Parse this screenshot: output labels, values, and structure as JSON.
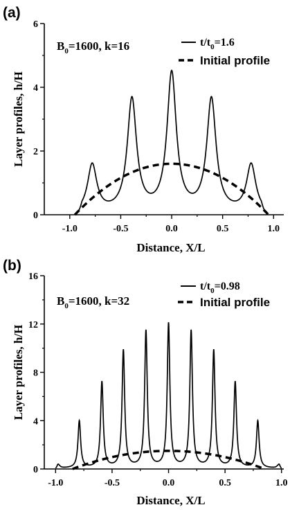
{
  "chart_data": [
    {
      "type": "line",
      "panel_label": "(a)",
      "annotation": {
        "main": "B",
        "sub": "0",
        "rest": "=1600, k=16"
      },
      "xlabel": "Distance, X/L",
      "ylabel": "Layer profiles, h/H",
      "xlim": [
        -1.25,
        1.1
      ],
      "ylim": [
        0,
        6
      ],
      "xticks": [
        -1.0,
        -0.5,
        0.0,
        0.5,
        1.0
      ],
      "xtick_labels": [
        "-1.0",
        "-0.5",
        "0.0",
        "0.5",
        "1.0"
      ],
      "yticks": [
        0,
        2,
        4,
        6
      ],
      "ytick_labels": [
        "0",
        "2",
        "4",
        "6"
      ],
      "legend": {
        "position": "top-right",
        "entries": [
          {
            "style": "solid",
            "label_main": "t/t",
            "label_sub": "0",
            "label_rest": "=1.6"
          },
          {
            "style": "dashed",
            "label": "Initial profile"
          }
        ]
      },
      "series": [
        {
          "style": "solid",
          "base": 0.05,
          "half_width": 0.92,
          "peak_width": 0.055,
          "peaks": [
            {
              "x": -0.78,
              "y": 1.55
            },
            {
              "x": -0.39,
              "y": 3.58
            },
            {
              "x": 0.0,
              "y": 4.38
            },
            {
              "x": 0.39,
              "y": 3.58
            },
            {
              "x": 0.78,
              "y": 1.55
            }
          ]
        },
        {
          "style": "dashed",
          "peak_value": 1.6,
          "half_width": 0.95
        }
      ]
    },
    {
      "type": "line",
      "panel_label": "(b)",
      "annotation": {
        "main": "B",
        "sub": "0",
        "rest": "=1600, k=32"
      },
      "xlabel": "Distance, X/L",
      "ylabel": "Layer profiles, h/H",
      "xlim": [
        -1.1,
        1.02
      ],
      "ylim": [
        0,
        16
      ],
      "xticks": [
        -1.0,
        -0.5,
        0.0,
        0.5,
        1.0
      ],
      "xtick_labels": [
        "-1.0",
        "-0.5",
        "0.0",
        "0.5",
        "1.0"
      ],
      "yticks": [
        0,
        4,
        8,
        12,
        16
      ],
      "ytick_labels": [
        "0",
        "4",
        "8",
        "12",
        "16"
      ],
      "legend": {
        "position": "top-right",
        "entries": [
          {
            "style": "solid",
            "label_main": "t/t",
            "label_sub": "0",
            "label_rest": "=0.98"
          },
          {
            "style": "dashed",
            "label": "Initial profile"
          }
        ]
      },
      "series": [
        {
          "style": "solid",
          "base": 0.12,
          "half_width": 1.0,
          "peak_width": 0.014,
          "peaks": [
            {
              "x": -0.98,
              "y": 0.65
            },
            {
              "x": -0.79,
              "y": 4.0
            },
            {
              "x": -0.59,
              "y": 7.2
            },
            {
              "x": -0.4,
              "y": 9.8
            },
            {
              "x": -0.2,
              "y": 11.4
            },
            {
              "x": 0.0,
              "y": 12.0
            },
            {
              "x": 0.2,
              "y": 11.4
            },
            {
              "x": 0.4,
              "y": 9.8
            },
            {
              "x": 0.59,
              "y": 7.2
            },
            {
              "x": 0.79,
              "y": 4.0
            },
            {
              "x": 0.98,
              "y": 0.65
            }
          ]
        },
        {
          "style": "dashed",
          "peak_value": 1.5,
          "half_width": 0.85
        }
      ]
    }
  ]
}
